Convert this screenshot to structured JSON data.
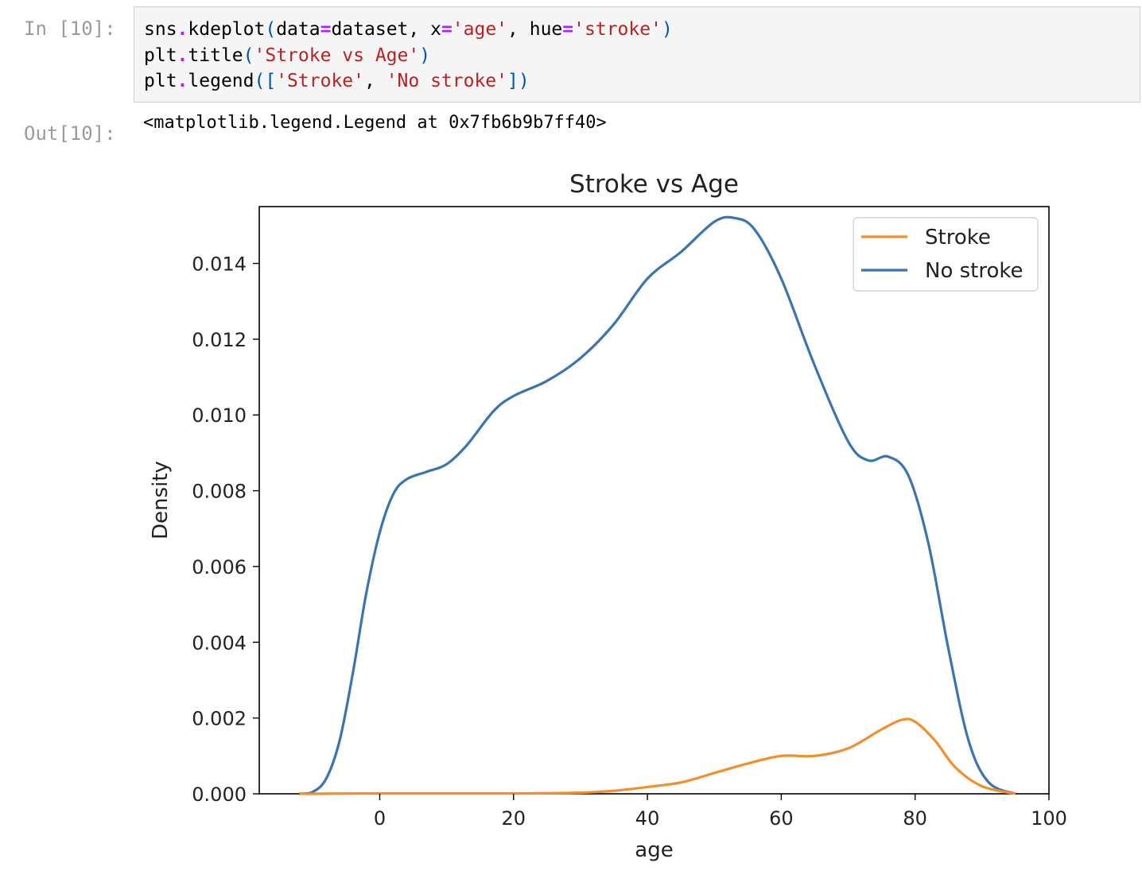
{
  "cell_in": {
    "prompt": "In [10]:",
    "lines": [
      [
        {
          "t": "sns",
          "c": ""
        },
        {
          "t": ".",
          "c": "op"
        },
        {
          "t": "kdeplot",
          "c": ""
        },
        {
          "t": "(",
          "c": "punct"
        },
        {
          "t": "data",
          "c": ""
        },
        {
          "t": "=",
          "c": "op"
        },
        {
          "t": "dataset",
          "c": ""
        },
        {
          "t": ", x",
          "c": ""
        },
        {
          "t": "=",
          "c": "op"
        },
        {
          "t": "'age'",
          "c": "str"
        },
        {
          "t": ", hue",
          "c": ""
        },
        {
          "t": "=",
          "c": "op"
        },
        {
          "t": "'stroke'",
          "c": "str"
        },
        {
          "t": ")",
          "c": "punct"
        }
      ],
      [
        {
          "t": "plt",
          "c": ""
        },
        {
          "t": ".",
          "c": "op"
        },
        {
          "t": "title",
          "c": ""
        },
        {
          "t": "(",
          "c": "punct"
        },
        {
          "t": "'Stroke vs Age'",
          "c": "str"
        },
        {
          "t": ")",
          "c": "punct"
        }
      ],
      [
        {
          "t": "plt",
          "c": ""
        },
        {
          "t": ".",
          "c": "op"
        },
        {
          "t": "legend",
          "c": ""
        },
        {
          "t": "([",
          "c": "punct"
        },
        {
          "t": "'Stroke'",
          "c": "str"
        },
        {
          "t": ", ",
          "c": ""
        },
        {
          "t": "'No stroke'",
          "c": "str"
        },
        {
          "t": "])",
          "c": "punct"
        }
      ]
    ]
  },
  "cell_out": {
    "prompt": "Out[10]:",
    "text": "<matplotlib.legend.Legend at 0x7fb6b9b7ff40>"
  },
  "chart_data": {
    "type": "line",
    "title": "Stroke vs Age",
    "xlabel": "age",
    "ylabel": "Density",
    "xlim": [
      -18,
      100
    ],
    "ylim": [
      0,
      0.0155
    ],
    "xticks": [
      0,
      20,
      40,
      60,
      80,
      100
    ],
    "yticks": [
      0.0,
      0.002,
      0.004,
      0.006,
      0.008,
      0.01,
      0.012,
      0.014
    ],
    "ytick_labels": [
      "0.000",
      "0.002",
      "0.004",
      "0.006",
      "0.008",
      "0.010",
      "0.012",
      "0.014"
    ],
    "grid": false,
    "legend_position": "top-right",
    "series": [
      {
        "name": "Stroke",
        "color": "#f28e2b",
        "points": [
          [
            -12,
            0
          ],
          [
            0,
            1e-05
          ],
          [
            20,
            1e-05
          ],
          [
            30,
            3e-05
          ],
          [
            35,
            8e-05
          ],
          [
            40,
            0.00018
          ],
          [
            45,
            0.0003
          ],
          [
            50,
            0.00055
          ],
          [
            55,
            0.0008
          ],
          [
            60,
            0.001
          ],
          [
            65,
            0.001
          ],
          [
            70,
            0.0012
          ],
          [
            75,
            0.0017
          ],
          [
            78,
            0.00195
          ],
          [
            80,
            0.0019
          ],
          [
            83,
            0.0014
          ],
          [
            86,
            0.0007
          ],
          [
            90,
            0.0002
          ],
          [
            95,
            0
          ]
        ]
      },
      {
        "name": "No stroke",
        "color": "#3b75af",
        "points": [
          [
            -12,
            0
          ],
          [
            -10,
            5e-05
          ],
          [
            -8,
            0.0004
          ],
          [
            -6,
            0.0014
          ],
          [
            -4,
            0.0032
          ],
          [
            -2,
            0.0053
          ],
          [
            0,
            0.0069
          ],
          [
            2,
            0.0079
          ],
          [
            4,
            0.0083
          ],
          [
            7,
            0.0085
          ],
          [
            10,
            0.0087
          ],
          [
            13,
            0.0092
          ],
          [
            17,
            0.0101
          ],
          [
            20,
            0.0105
          ],
          [
            25,
            0.0109
          ],
          [
            30,
            0.0115
          ],
          [
            35,
            0.0124
          ],
          [
            40,
            0.0136
          ],
          [
            45,
            0.0143
          ],
          [
            50,
            0.0151
          ],
          [
            53,
            0.0152
          ],
          [
            56,
            0.0149
          ],
          [
            60,
            0.0136
          ],
          [
            65,
            0.0113
          ],
          [
            70,
            0.0093
          ],
          [
            73,
            0.0088
          ],
          [
            76,
            0.0089
          ],
          [
            79,
            0.0084
          ],
          [
            82,
            0.0066
          ],
          [
            85,
            0.0038
          ],
          [
            88,
            0.0014
          ],
          [
            91,
            0.0003
          ],
          [
            95,
            0
          ]
        ]
      }
    ]
  }
}
